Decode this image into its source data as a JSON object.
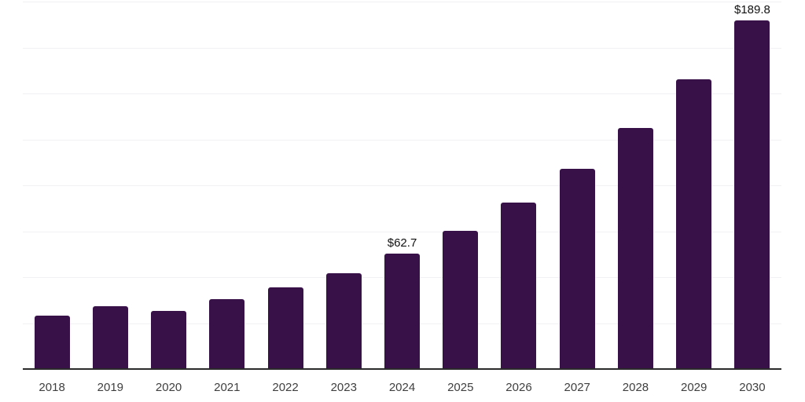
{
  "chart_data": {
    "type": "bar",
    "title": "",
    "xlabel": "",
    "ylabel": "",
    "categories": [
      "2018",
      "2019",
      "2020",
      "2021",
      "2022",
      "2023",
      "2024",
      "2025",
      "2026",
      "2027",
      "2028",
      "2029",
      "2030"
    ],
    "values": [
      28.9,
      34.2,
      31.6,
      38.0,
      44.6,
      52.2,
      62.7,
      75.4,
      90.7,
      109.1,
      131.3,
      157.9,
      189.8
    ],
    "data_labels": {
      "2024": "$62.7",
      "2030": "$189.8"
    },
    "ylim": [
      0,
      200
    ],
    "grid": true,
    "gridline_step": 25,
    "y_tick_labels_visible": false,
    "legend": "none",
    "colors": {
      "bar": "#371148",
      "axis_line": "#2b2b2b",
      "gridline": "#f1f1f4",
      "x_label": "#3f3f3f",
      "data_label": "#111111",
      "background": "#ffffff"
    }
  }
}
